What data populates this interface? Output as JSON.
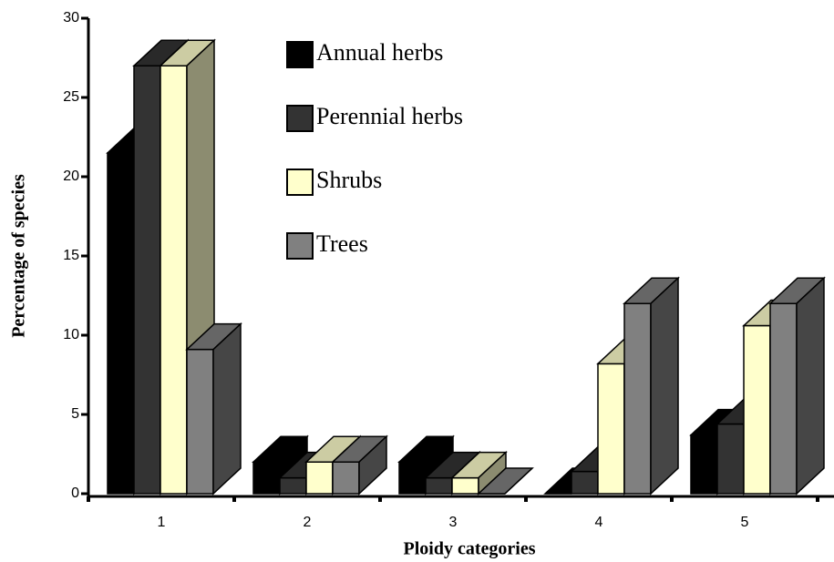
{
  "chart_data": {
    "type": "bar3d",
    "xlabel": "Ploidy categories",
    "ylabel": "Percentage of species",
    "categories": [
      "1",
      "2",
      "3",
      "4",
      "5"
    ],
    "series": [
      {
        "name": "Annual herbs",
        "color": "#000000",
        "values": [
          21.5,
          2,
          2,
          0,
          3.7
        ]
      },
      {
        "name": "Perennial herbs",
        "color": "#333333",
        "values": [
          27,
          1,
          1,
          1.4,
          4.4
        ]
      },
      {
        "name": "Shrubs",
        "color": "#ffffcc",
        "values": [
          27,
          2,
          1,
          8.2,
          10.6
        ]
      },
      {
        "name": "Trees",
        "color": "#808080",
        "values": [
          9.1,
          2,
          0,
          12,
          12
        ]
      }
    ],
    "ylim": [
      0,
      30
    ],
    "yticks": [
      0,
      5,
      10,
      15,
      20,
      25,
      30
    ]
  }
}
